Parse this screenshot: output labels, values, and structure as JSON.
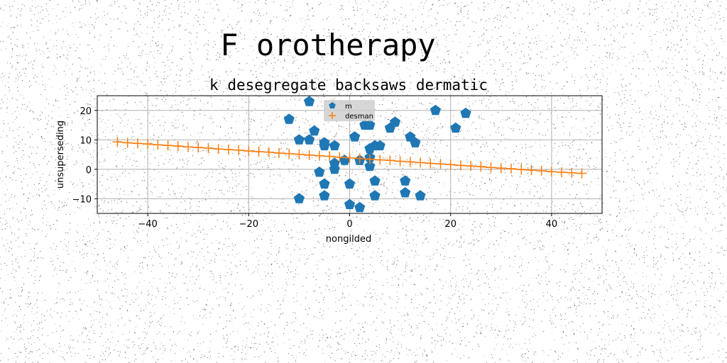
{
  "chart_data": {
    "type": "scatter",
    "suptitle": "F orotherapy",
    "title": "k desegregate backsaws dermatic",
    "xlabel": "nongilded",
    "ylabel": "unsuperseding",
    "xlim": [
      -50,
      50
    ],
    "ylim": [
      -15,
      25
    ],
    "xticks": [
      -40,
      -20,
      0,
      20,
      40
    ],
    "yticks": [
      -10,
      0,
      10,
      20
    ],
    "xtick_labels": [
      "−40",
      "−20",
      "0",
      "20",
      "40"
    ],
    "ytick_labels": [
      "−10",
      "0",
      "10",
      "20"
    ],
    "grid": true,
    "legend_position": "upper-center",
    "series": [
      {
        "name": "m",
        "marker": "pentagon",
        "color": "#1f77b4",
        "x": [
          -8,
          -12,
          -10,
          -8,
          -7,
          -5,
          -5,
          -3,
          -6,
          -5,
          -5,
          -3,
          -1,
          -3,
          0,
          1,
          3,
          4,
          4,
          5,
          6,
          4,
          2,
          4,
          5,
          5,
          0,
          2,
          8,
          9,
          12,
          13,
          11,
          11,
          14,
          17,
          21,
          23,
          -10
        ],
        "y": [
          23,
          17,
          10,
          10,
          13,
          9,
          8,
          8,
          -1,
          -5,
          -9,
          0,
          3,
          2,
          -5,
          11,
          15,
          15,
          7,
          8,
          8,
          4,
          3,
          1,
          -4,
          -9,
          -12,
          -13,
          14,
          16,
          11,
          9,
          -4,
          -8,
          -9,
          20,
          14,
          19,
          -10
        ]
      },
      {
        "name": "desman",
        "marker": "plus",
        "color": "#ff7f0e",
        "x": [
          -46,
          -44,
          -42,
          -40,
          -38,
          -36,
          -34,
          -32,
          -30,
          -28,
          -26,
          -24,
          -22,
          -20,
          -18,
          -16,
          -14,
          -12,
          -10,
          -8,
          -6,
          -4,
          -2,
          0,
          2,
          4,
          6,
          8,
          10,
          12,
          14,
          16,
          18,
          20,
          22,
          24,
          26,
          28,
          30,
          32,
          34,
          36,
          38,
          40,
          42,
          44,
          46
        ],
        "y": [
          9.3,
          9.0,
          8.8,
          8.6,
          8.3,
          8.1,
          7.9,
          7.6,
          7.4,
          7.2,
          6.9,
          6.7,
          6.5,
          6.2,
          6.0,
          5.8,
          5.5,
          5.3,
          5.1,
          4.8,
          4.6,
          4.4,
          4.1,
          3.9,
          3.7,
          3.4,
          3.2,
          3.0,
          2.7,
          2.5,
          2.3,
          2.0,
          1.8,
          1.6,
          1.3,
          1.1,
          0.9,
          0.6,
          0.4,
          0.2,
          -0.1,
          -0.3,
          -0.5,
          -0.8,
          -1.0,
          -1.2,
          -1.4
        ]
      }
    ]
  }
}
